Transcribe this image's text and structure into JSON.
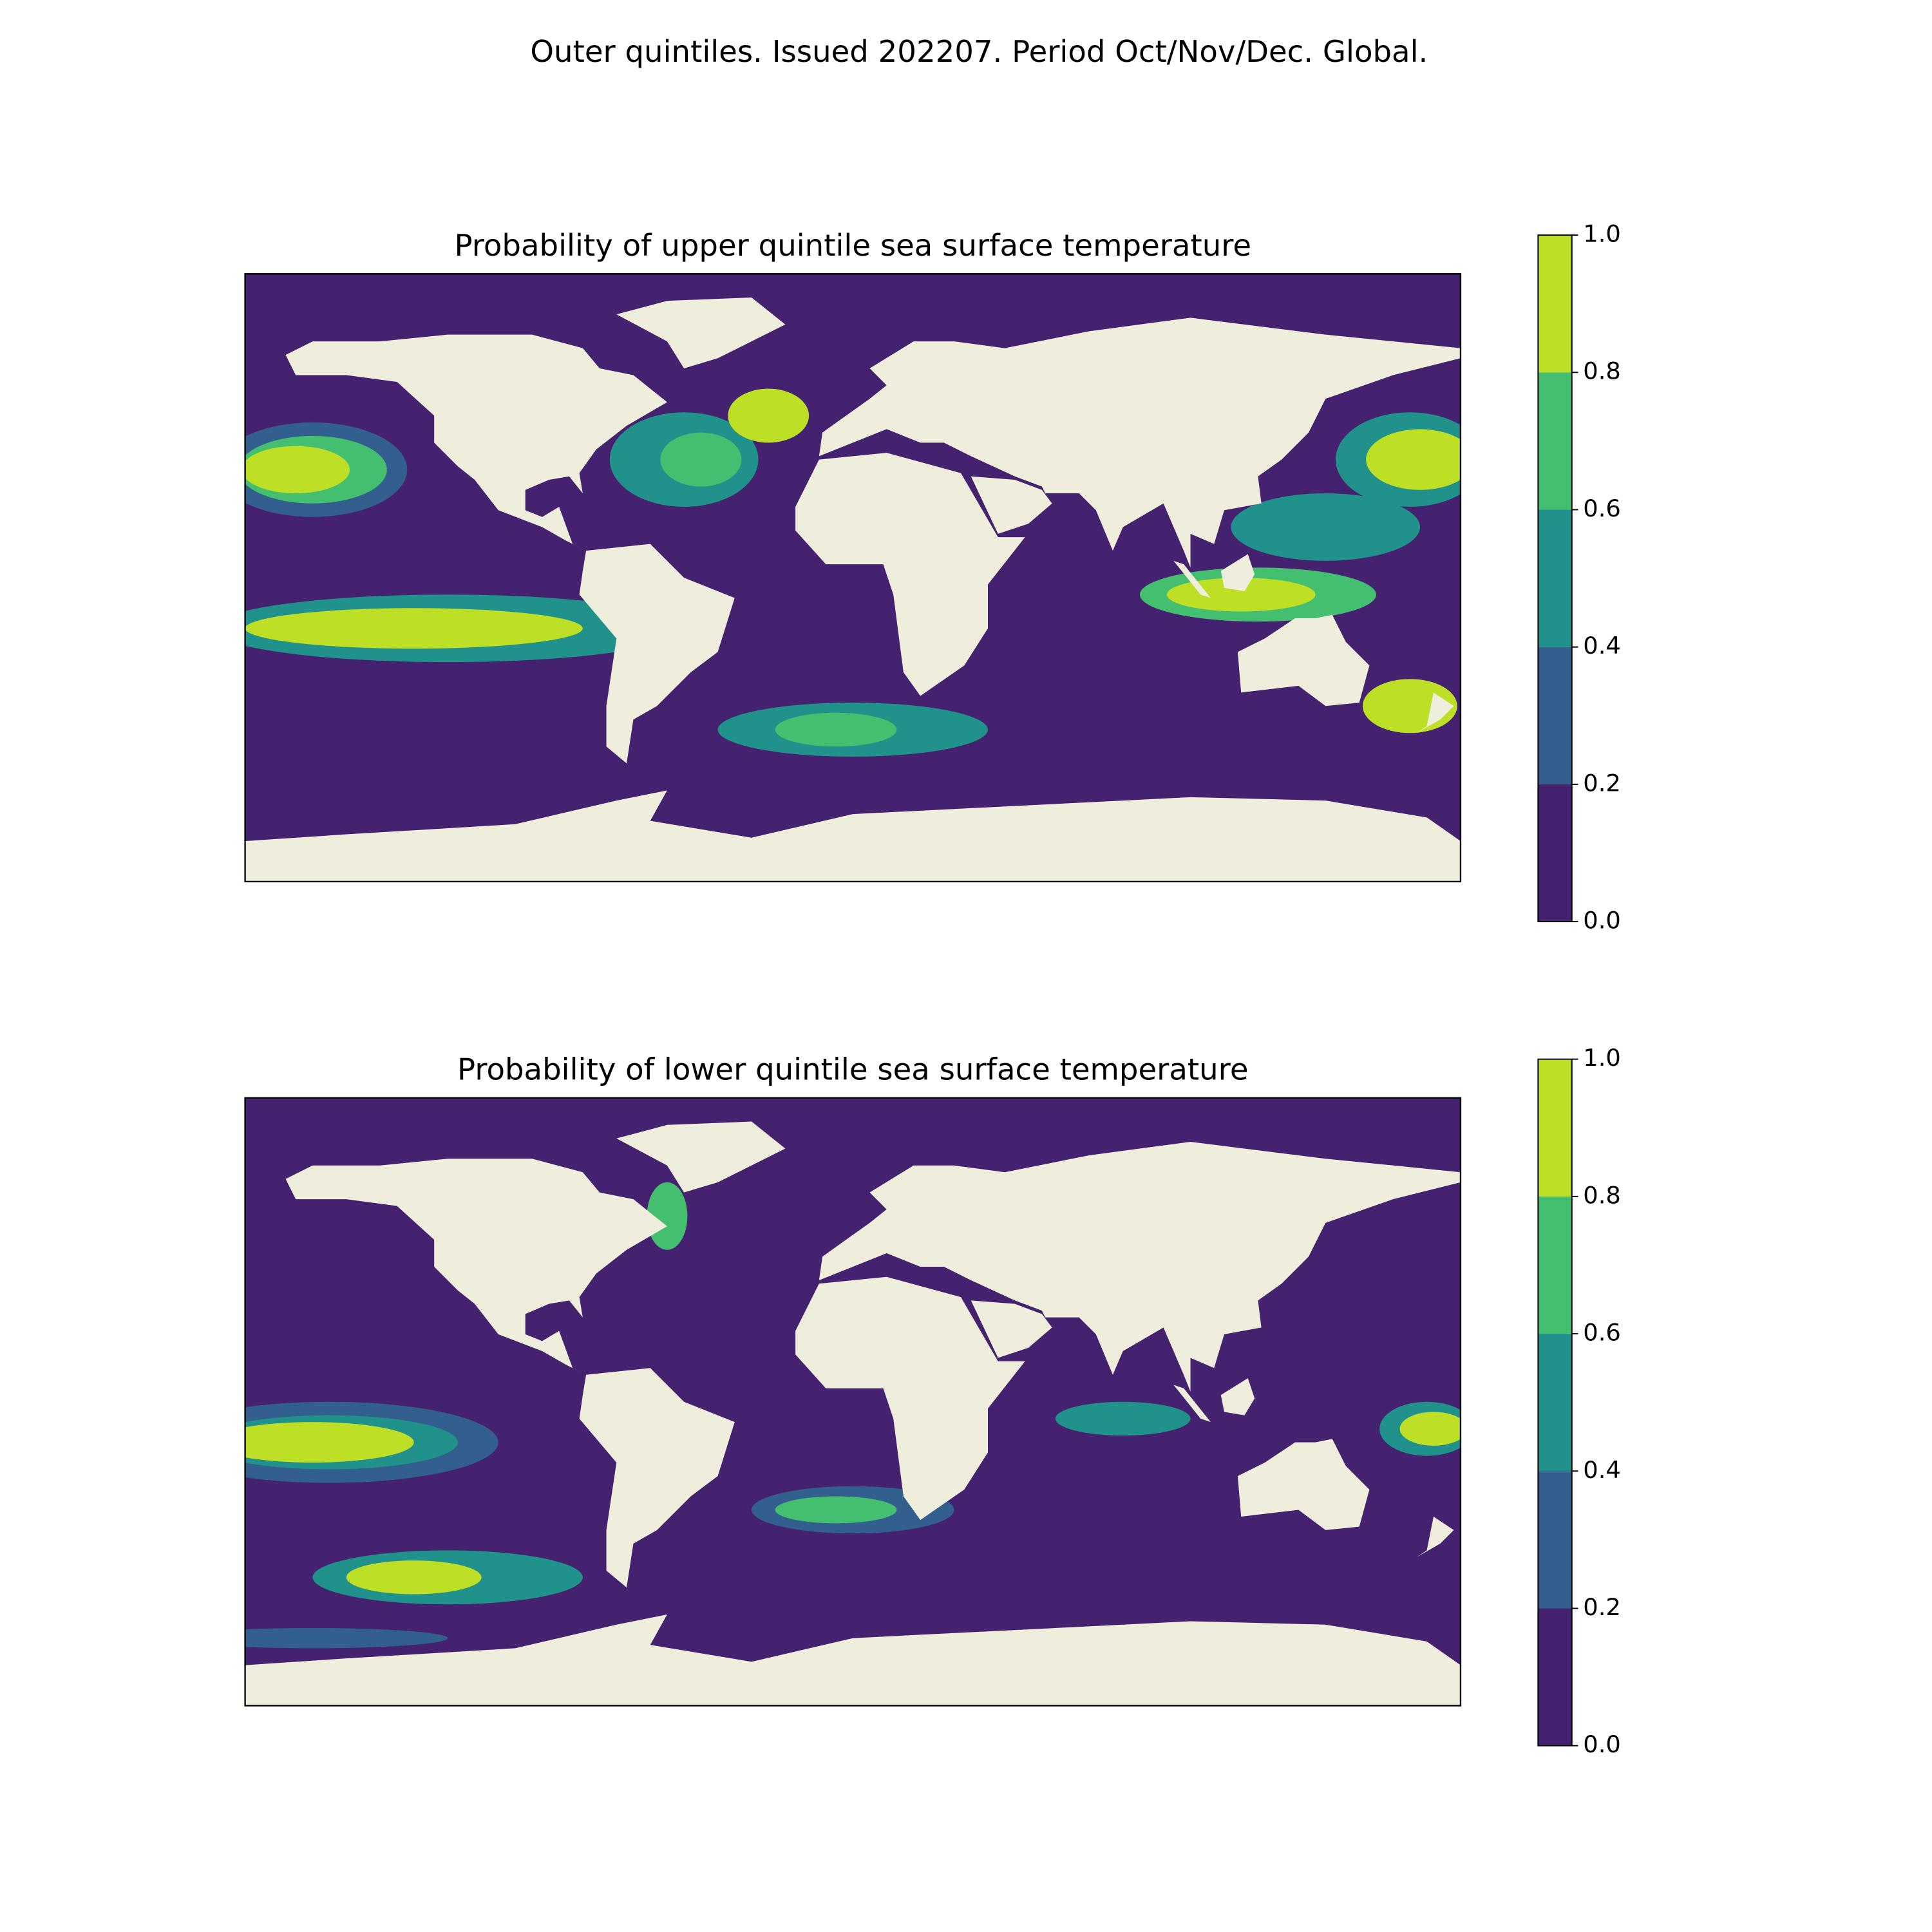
{
  "title": "Outer quintiles. Issued 202207. Period Oct/Nov/Dec. Global.",
  "maps": [
    {
      "title": "Probability of upper quintile sea surface temperature",
      "colorbar": {
        "ticks": [
          {
            "value": 0,
            "label": "0.0"
          },
          0.2,
          0.4,
          0.6,
          0.8,
          {
            "value": 1,
            "label": "1.0"
          }
        ],
        "colors": [
          "#45226f",
          "#335f8e",
          "#21918c",
          "#44bf70",
          "#bddf26"
        ]
      }
    },
    {
      "title": "Probability of lower quintile sea surface temperature",
      "colorbar": {
        "ticks": [
          {
            "value": 0,
            "label": "0.0"
          },
          0.2,
          0.4,
          0.6,
          0.8,
          {
            "value": 1,
            "label": "1.0"
          }
        ],
        "colors": [
          "#45226f",
          "#335f8e",
          "#21918c",
          "#44bf70",
          "#bddf26"
        ]
      }
    }
  ]
}
